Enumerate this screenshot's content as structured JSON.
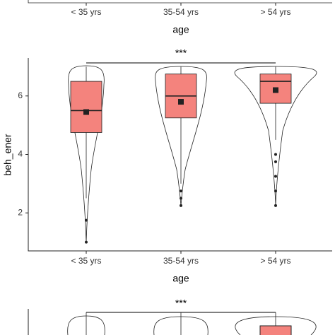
{
  "chart_data": [
    {
      "type": "violin",
      "categories": [
        "< 35 yrs",
        "35-54 yrs",
        "> 54 yrs"
      ],
      "x_label": "age"
    },
    {
      "type": "violin",
      "significance": "***",
      "y_label": "beh_ener",
      "x_label": "age",
      "categories": [
        "< 35 yrs",
        "35-54 yrs",
        "> 54 yrs"
      ],
      "color": "#f4837d",
      "ylim": [
        0.7,
        7.3
      ],
      "yticks": [
        2,
        4,
        6
      ],
      "boxes": [
        {
          "q1": 4.75,
          "median": 5.5,
          "q3": 6.5,
          "mean": 5.45,
          "whisker_low": 2.5,
          "whisker_high": 7.0,
          "outliers": [
            1.75,
            1.0
          ]
        },
        {
          "q1": 5.25,
          "median": 6.0,
          "q3": 6.75,
          "mean": 5.8,
          "whisker_low": 3.0,
          "whisker_high": 7.0,
          "outliers": [
            2.75,
            2.5,
            2.25
          ]
        },
        {
          "q1": 5.75,
          "median": 6.5,
          "q3": 6.75,
          "mean": 6.2,
          "whisker_low": 4.5,
          "whisker_high": 7.0,
          "outliers": [
            4.0,
            3.75,
            3.25,
            2.75,
            2.25
          ]
        }
      ]
    },
    {
      "type": "violin",
      "significance": "***"
    }
  ]
}
